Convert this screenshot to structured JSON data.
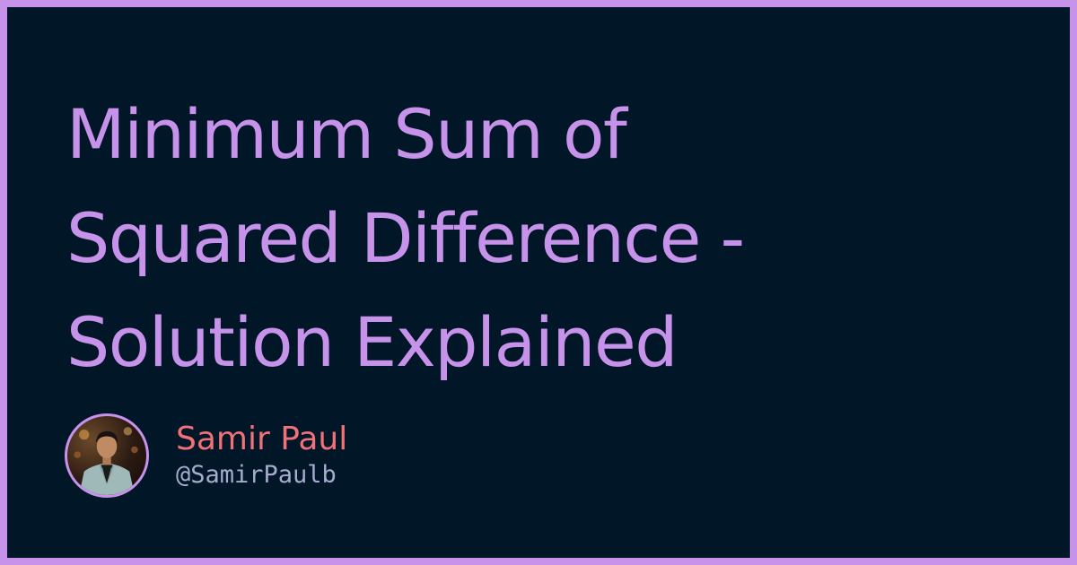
{
  "title": {
    "lines": [
      "Minimum Sum of",
      "Squared Difference -",
      "Solution Explained"
    ]
  },
  "author": {
    "name": "Samir Paul",
    "handle": "@SamirPaulb",
    "avatar_icon": "author-photo"
  },
  "colors": {
    "border": "#c792ea",
    "background": "#011627",
    "title": "#c792ea",
    "name": "#f07178",
    "handle": "#a6accd"
  }
}
